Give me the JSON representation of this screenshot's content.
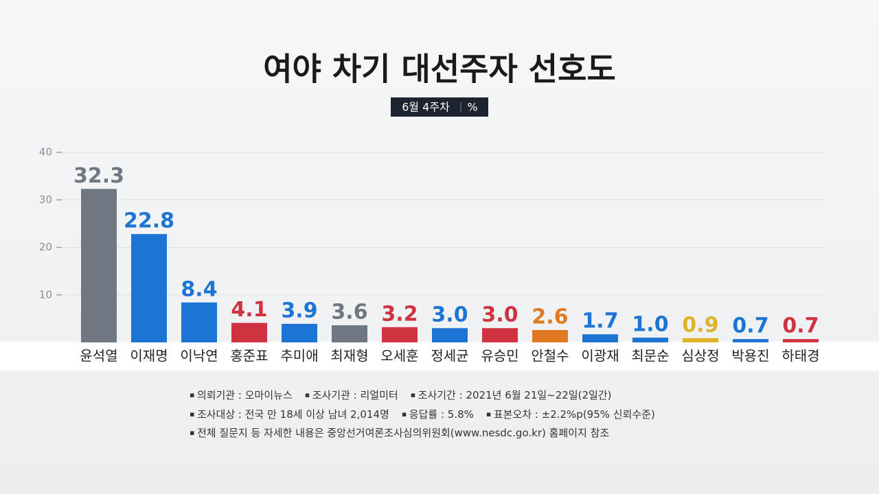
{
  "chart_data": {
    "type": "bar",
    "title": "여야 차기 대선주자 선호도",
    "subtitle": {
      "period": "6월 4주차",
      "unit": "%"
    },
    "categories": [
      "윤석열",
      "이재명",
      "이낙연",
      "홍준표",
      "추미애",
      "최재형",
      "오세훈",
      "정세균",
      "유승민",
      "안철수",
      "이광재",
      "최문순",
      "심상정",
      "박용진",
      "하태경"
    ],
    "values": [
      32.3,
      22.8,
      8.4,
      4.1,
      3.9,
      3.6,
      3.2,
      3.0,
      3.0,
      2.6,
      1.7,
      1.0,
      0.9,
      0.7,
      0.7
    ],
    "value_labels": [
      "32.3",
      "22.8",
      "8.4",
      "4.1",
      "3.9",
      "3.6",
      "3.2",
      "3.0",
      "3.0",
      "2.6",
      "1.7",
      "1.0",
      "0.9",
      "0.7",
      "0.7"
    ],
    "colors": [
      "#6f7882",
      "#1c74d4",
      "#1c74d4",
      "#cf3340",
      "#1c74d4",
      "#6f7882",
      "#cf3340",
      "#1c74d4",
      "#cf3340",
      "#e07a22",
      "#1c74d4",
      "#1c74d4",
      "#e0b22a",
      "#1c74d4",
      "#cf3340"
    ],
    "ylim": [
      0,
      40
    ],
    "yticks": [
      10,
      20,
      30,
      40
    ],
    "grid": true,
    "notes": [
      [
        "의뢰기관 : 오마이뉴스",
        "조사기관 : 리얼미터",
        "조사기간 : 2021년 6월 21일~22일(2일간)"
      ],
      [
        "조사대상 : 전국 만 18세 이상 남녀 2,014명",
        "응답률 : 5.8%",
        "표본오차 : ±2.2%p(95% 신뢰수준)"
      ],
      [
        "전체 질문지 등 자세한 내용은 중앙선거여론조사심의위원회(www.nesdc.go.kr) 홈페이지 참조"
      ]
    ]
  }
}
